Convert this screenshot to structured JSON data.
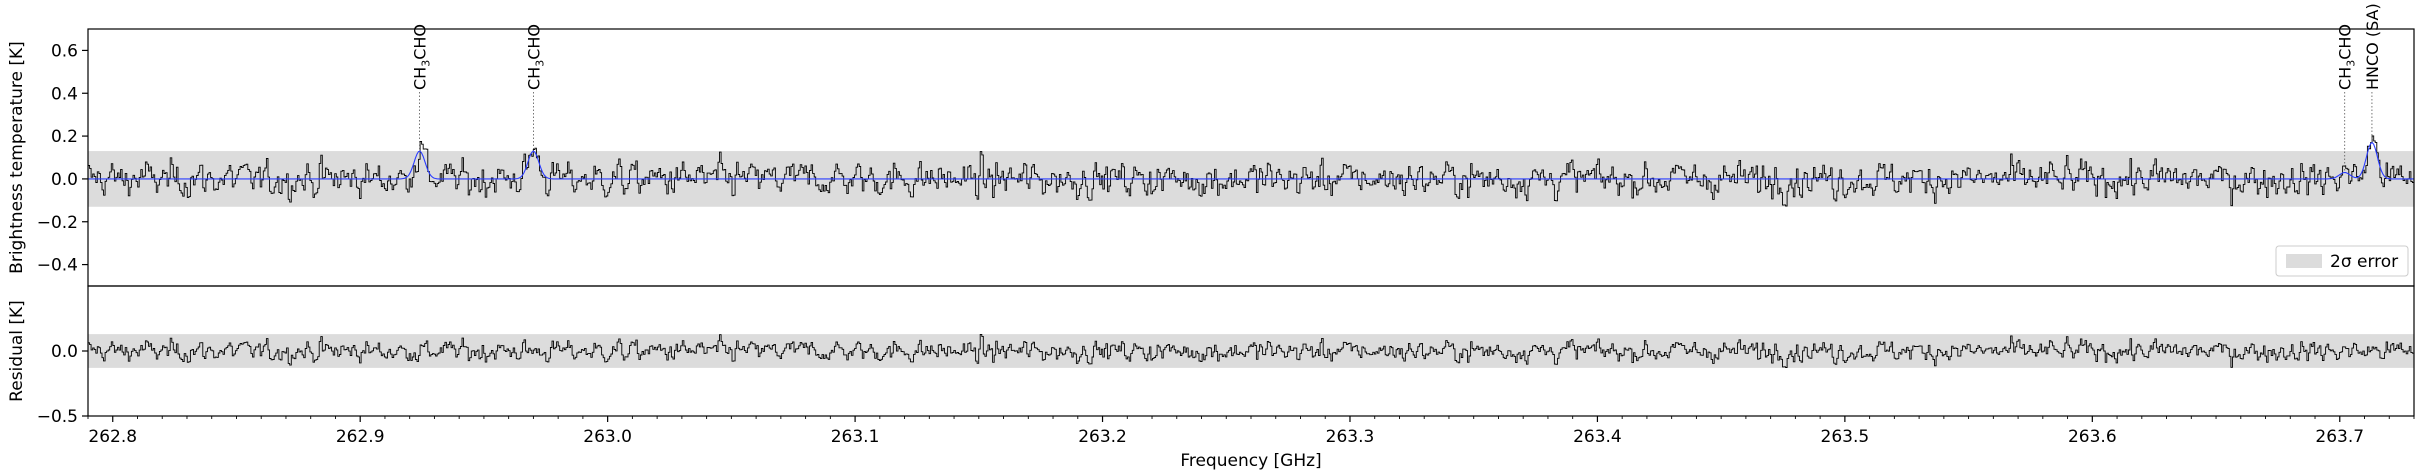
{
  "chart_data": [
    {
      "type": "line",
      "panel": "top",
      "ylabel": "Brightness temperature [K]",
      "xlim": [
        262.79,
        263.73
      ],
      "ylim": [
        -0.5,
        0.7
      ],
      "yticks": [
        -0.4,
        -0.2,
        0.0,
        0.2,
        0.4,
        0.6
      ],
      "ytick_labels": [
        "−0.4",
        "−0.2",
        "0.0",
        "0.2",
        "0.4",
        "0.6"
      ],
      "noise_band": {
        "lower": -0.13,
        "upper": 0.13,
        "label": "2σ error"
      },
      "legend": {
        "placement": "lower-right",
        "entries": [
          "2σ error"
        ]
      },
      "series": [
        {
          "role": "observed spectrum",
          "color": "#000000",
          "style": "step"
        },
        {
          "role": "model fit",
          "color": "#0000ff",
          "style": "line",
          "peaks": [
            {
              "x": 262.924,
              "y": 0.13
            },
            {
              "x": 262.97,
              "y": 0.13
            },
            {
              "x": 263.702,
              "y": 0.03
            },
            {
              "x": 263.713,
              "y": 0.17
            }
          ]
        }
      ],
      "annotations": [
        {
          "x": 262.924,
          "label": "CH3CHO",
          "label_main": "CH",
          "label_sub": "3",
          "label_tail": "CHO"
        },
        {
          "x": 262.97,
          "label": "CH3CHO",
          "label_main": "CH",
          "label_sub": "3",
          "label_tail": "CHO"
        },
        {
          "x": 263.702,
          "label": "CH3CHO",
          "label_main": "CH",
          "label_sub": "3",
          "label_tail": "CHO"
        },
        {
          "x": 263.713,
          "label": "HNCO (SA)"
        }
      ]
    },
    {
      "type": "line",
      "panel": "bottom",
      "xlabel": "Frequency [GHz]",
      "ylabel": "Residual [K]",
      "xlim": [
        262.79,
        263.73
      ],
      "ylim": [
        -0.5,
        0.5
      ],
      "yticks": [
        -0.5,
        0.0
      ],
      "ytick_labels": [
        "−0.5",
        "0.0"
      ],
      "xticks": [
        262.8,
        262.9,
        263.0,
        263.1,
        263.2,
        263.3,
        263.4,
        263.5,
        263.6,
        263.7
      ],
      "xtick_labels": [
        "262.8",
        "262.9",
        "263.0",
        "263.1",
        "263.2",
        "263.3",
        "263.4",
        "263.5",
        "263.6",
        "263.7"
      ],
      "noise_band": {
        "lower": -0.13,
        "upper": 0.13
      },
      "series": [
        {
          "role": "residual",
          "color": "#000000",
          "style": "step"
        }
      ]
    }
  ]
}
